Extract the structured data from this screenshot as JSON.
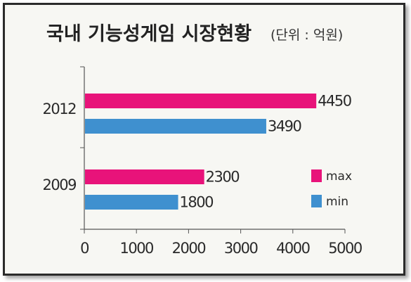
{
  "chart_data": {
    "type": "bar",
    "orientation": "horizontal",
    "title": "국내 기능성게임 시장현황",
    "subtitle": "(단위 : 억원)",
    "categories": [
      "2012",
      "2009"
    ],
    "series": [
      {
        "name": "max",
        "values": [
          4450,
          2300
        ],
        "color": "#e8137a"
      },
      {
        "name": "min",
        "values": [
          3490,
          1800
        ],
        "color": "#3f90cf"
      }
    ],
    "xlim": [
      0,
      5000
    ],
    "xticks": [
      0,
      1000,
      2000,
      3000,
      4000,
      5000
    ],
    "xlabel": "",
    "ylabel": "",
    "grid": false,
    "legend": "bottom-right"
  }
}
